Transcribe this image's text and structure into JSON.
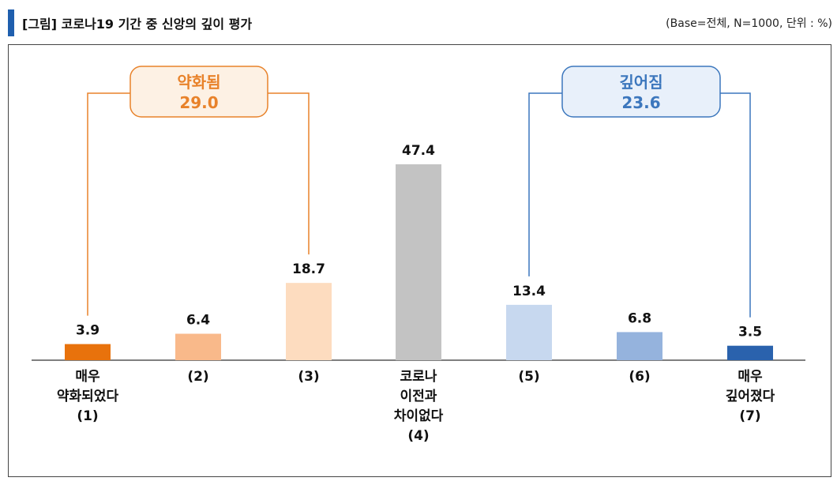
{
  "header": {
    "title": "[그림] 코로나19 기간 중 신앙의 깊이 평가",
    "base_note": "(Base=전체, N=1000, 단위 : %)"
  },
  "chart_data": {
    "type": "bar",
    "categories": [
      [
        "매우",
        "약화되었다",
        "(1)"
      ],
      [
        "(2)"
      ],
      [
        "(3)"
      ],
      [
        "코로나",
        "이전과",
        "차이없다",
        "(4)"
      ],
      [
        "(5)"
      ],
      [
        "(6)"
      ],
      [
        "매우",
        "깊어졌다",
        "(7)"
      ]
    ],
    "values": [
      3.9,
      6.4,
      18.7,
      47.4,
      13.4,
      6.8,
      3.5
    ],
    "value_labels": [
      "3.9",
      "6.4",
      "18.7",
      "47.4",
      "13.4",
      "6.8",
      "3.5"
    ],
    "colors": [
      "#e8720c",
      "#f9b98a",
      "#fddcbf",
      "#c3c3c3",
      "#c7d8ef",
      "#95b3dd",
      "#2a62ad"
    ],
    "ylim": [
      0,
      50
    ],
    "grid": false,
    "annotations": [
      {
        "label": "약화됨",
        "value": "29.0",
        "color": "#e8822a",
        "fill": "#fdf1e4",
        "bars": [
          0,
          2
        ]
      },
      {
        "label": "깊어짐",
        "value": "23.6",
        "color": "#3c77bd",
        "fill": "#e8f0fa",
        "bars": [
          4,
          6
        ]
      }
    ]
  }
}
